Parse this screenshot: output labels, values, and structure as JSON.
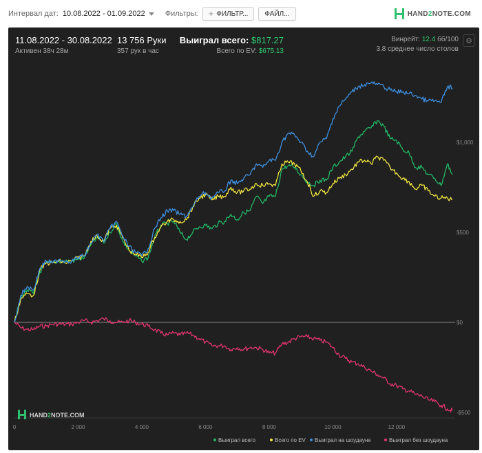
{
  "toolbar": {
    "date_label": "Интервал дат:",
    "date_value": "10.08.2022 - 01.09.2022",
    "filters_label": "Фильтры:",
    "filter_button": "ФИЛЬТР...",
    "file_button": "ФАЙЛ...",
    "logo_text_a": "HAND",
    "logo_text_b": "2",
    "logo_text_c": "NOTE.COM"
  },
  "summary": {
    "period": "11.08.2022 - 30.08.2022",
    "active": "Активен 38ч 28м",
    "hands": "13 756 Руки",
    "hands_per_hour": "357 рук в час",
    "won_label": "Выиграл всего:",
    "won_value": "$817.27",
    "ev_label": "Всего по EV:",
    "ev_value": "$675.13",
    "winrate_label": "Винрейт:",
    "winrate_value": "12.4",
    "winrate_suffix": "бб/100",
    "tables": "3.8 среднее число столов"
  },
  "watermark": {
    "a": "HAND",
    "b": "2",
    "c": "NOTE.COM"
  },
  "colors": {
    "won": "#22b865",
    "ev": "#f2e640",
    "showdown": "#3d8fe0",
    "nonshowdown": "#e0356e",
    "background": "#202020"
  },
  "chart_data": {
    "type": "line",
    "title": "",
    "xlabel": "",
    "ylabel": "",
    "xlim": [
      0,
      13756
    ],
    "ylim": [
      -500,
      1370
    ],
    "x_ticks": [
      0,
      2000,
      4000,
      6000,
      8000,
      10000,
      12000
    ],
    "x_tick_labels": [
      "0",
      "2 000",
      "4 000",
      "6 000",
      "8 000",
      "10 000",
      "12 000"
    ],
    "y_ticks": [
      -500,
      0,
      500,
      1000
    ],
    "y_tick_labels": [
      "-$500",
      "$0",
      "$500",
      "$1,000"
    ],
    "grid": false,
    "legend_position": "bottom-right",
    "x": [
      0,
      200,
      400,
      600,
      800,
      1000,
      1200,
      1400,
      1600,
      1800,
      2000,
      2200,
      2400,
      2600,
      2800,
      3000,
      3200,
      3400,
      3600,
      3800,
      4000,
      4200,
      4400,
      4600,
      4800,
      5000,
      5200,
      5400,
      5600,
      5800,
      6000,
      6200,
      6400,
      6600,
      6800,
      7000,
      7200,
      7400,
      7600,
      7800,
      8000,
      8200,
      8400,
      8600,
      8800,
      9000,
      9200,
      9400,
      9600,
      9800,
      10000,
      10200,
      10400,
      10600,
      10800,
      11000,
      11200,
      11400,
      11600,
      11800,
      12000,
      12200,
      12400,
      12600,
      12800,
      13000,
      13200,
      13400,
      13600,
      13756
    ],
    "series": [
      {
        "name": "Выиграл всего",
        "values": [
          0,
          140,
          180,
          160,
          280,
          330,
          330,
          340,
          340,
          340,
          350,
          360,
          430,
          470,
          440,
          500,
          550,
          450,
          400,
          370,
          340,
          360,
          470,
          540,
          550,
          560,
          500,
          460,
          500,
          530,
          540,
          520,
          550,
          560,
          600,
          570,
          610,
          620,
          700,
          660,
          700,
          700,
          850,
          870,
          860,
          820,
          780,
          760,
          790,
          790,
          860,
          890,
          920,
          950,
          1030,
          1060,
          1080,
          1120,
          1090,
          1020,
          1010,
          960,
          940,
          860,
          860,
          820,
          800,
          760,
          880,
          820
        ]
      },
      {
        "name": "Всего по EV",
        "values": [
          0,
          130,
          160,
          150,
          290,
          330,
          330,
          340,
          330,
          340,
          360,
          370,
          450,
          480,
          450,
          520,
          540,
          470,
          400,
          380,
          360,
          390,
          470,
          530,
          560,
          570,
          560,
          570,
          640,
          690,
          710,
          680,
          700,
          700,
          750,
          720,
          730,
          740,
          770,
          760,
          770,
          760,
          880,
          890,
          880,
          840,
          780,
          700,
          730,
          720,
          770,
          800,
          820,
          850,
          890,
          900,
          880,
          920,
          900,
          860,
          830,
          800,
          780,
          740,
          760,
          730,
          700,
          690,
          690,
          680
        ]
      },
      {
        "name": "Выиграл на шоудауне",
        "values": [
          0,
          150,
          200,
          180,
          300,
          340,
          330,
          350,
          340,
          340,
          360,
          370,
          440,
          490,
          450,
          520,
          560,
          480,
          420,
          390,
          370,
          410,
          520,
          580,
          620,
          620,
          600,
          590,
          640,
          700,
          720,
          690,
          720,
          730,
          790,
          770,
          800,
          820,
          880,
          860,
          900,
          900,
          1000,
          1050,
          1040,
          1000,
          950,
          920,
          1000,
          1020,
          1130,
          1200,
          1240,
          1280,
          1310,
          1320,
          1330,
          1320,
          1310,
          1290,
          1280,
          1280,
          1270,
          1260,
          1240,
          1230,
          1230,
          1220,
          1310,
          1300
        ]
      },
      {
        "name": "Выиграл без шоудауна",
        "values": [
          0,
          -30,
          -40,
          -40,
          -20,
          -20,
          -10,
          -10,
          -10,
          -10,
          0,
          10,
          0,
          10,
          20,
          10,
          0,
          0,
          10,
          0,
          -10,
          -20,
          -40,
          -60,
          -70,
          -60,
          -70,
          -60,
          -70,
          -90,
          -110,
          -130,
          -130,
          -130,
          -150,
          -140,
          -150,
          -140,
          -140,
          -150,
          -170,
          -170,
          -120,
          -110,
          -90,
          -80,
          -80,
          -90,
          -100,
          -110,
          -140,
          -180,
          -200,
          -220,
          -230,
          -250,
          -270,
          -290,
          -310,
          -340,
          -350,
          -370,
          -380,
          -400,
          -410,
          -430,
          -440,
          -460,
          -480,
          -490
        ]
      }
    ]
  }
}
